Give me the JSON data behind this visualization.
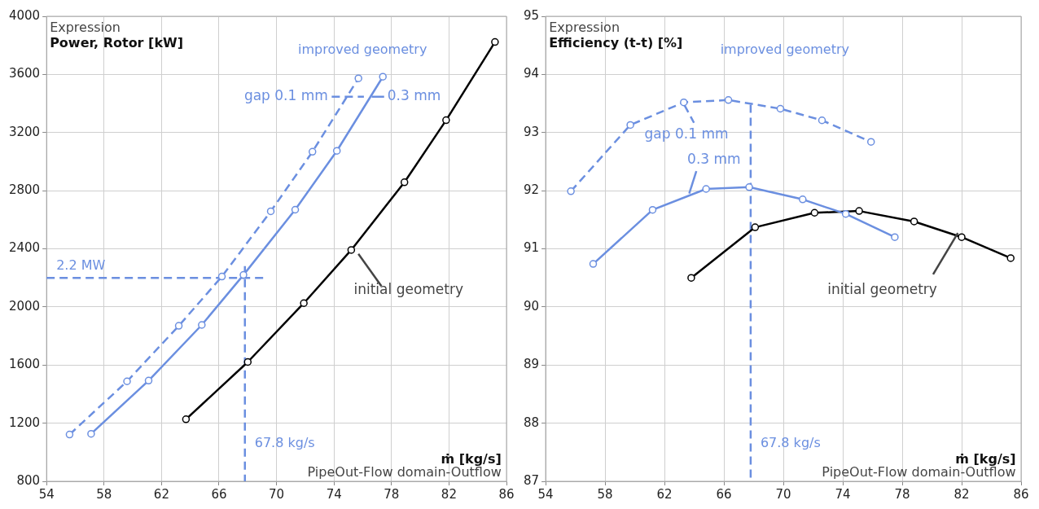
{
  "chart_data": [
    {
      "type": "line",
      "ylabel": "Power, Rotor [kW]",
      "xlabel": "ṁ [kg/s]",
      "annotations": [
        "Expression",
        "improved geometry",
        "PipeOut-Flow domain-Outflow"
      ],
      "xlim": [
        54,
        86
      ],
      "xticks": [
        54,
        58,
        62,
        66,
        70,
        74,
        78,
        82,
        86
      ],
      "ylim": [
        800,
        4000
      ],
      "yticks": [
        800,
        1200,
        1600,
        2000,
        2400,
        2800,
        3200,
        3600,
        4000
      ],
      "grid": true,
      "legend": "top",
      "marker": "circle",
      "ref_lines": [
        {
          "axis": "y",
          "value": 2200,
          "label": "2.2 MW",
          "color": "#6b8fe0",
          "line_style": "dashed"
        },
        {
          "axis": "x",
          "value": 67.8,
          "label": "67.8 kg/s",
          "color": "#6b8fe0",
          "line_style": "dashed"
        }
      ],
      "series": [
        {
          "name": "gap 0.1 mm",
          "color": "#6b8fe0",
          "line_style": "dashed",
          "x": [
            55.6,
            59.6,
            63.2,
            66.2,
            69.6,
            72.5,
            75.7
          ],
          "values": [
            1122,
            1488,
            1870,
            2209,
            2658,
            3068,
            3573
          ]
        },
        {
          "name": "0.3 mm",
          "color": "#6b8fe0",
          "line_style": "solid",
          "x": [
            57.1,
            61.1,
            64.8,
            67.7,
            71.3,
            74.2,
            77.4
          ],
          "values": [
            1127,
            1493,
            1876,
            2220,
            2669,
            3074,
            3584
          ]
        },
        {
          "name": "initial geometry",
          "color": "#000000",
          "line_style": "solid",
          "x": [
            63.7,
            68.0,
            71.9,
            75.2,
            78.9,
            81.8,
            85.2
          ],
          "values": [
            1227,
            1621,
            2026,
            2392,
            2858,
            3285,
            3823
          ]
        }
      ]
    },
    {
      "type": "line",
      "ylabel": "Efficiency (t-t) [%]",
      "xlabel": "ṁ [kg/s]",
      "annotations": [
        "Expression",
        "improved geometry",
        "PipeOut-Flow domain-Outflow"
      ],
      "xlim": [
        54,
        86
      ],
      "xticks": [
        54,
        58,
        62,
        66,
        70,
        74,
        78,
        82,
        86
      ],
      "ylim": [
        87,
        95
      ],
      "yticks": [
        87,
        88,
        89,
        90,
        91,
        92,
        93,
        94,
        95
      ],
      "grid": true,
      "legend": "top",
      "marker": "circle",
      "ref_lines": [
        {
          "axis": "x",
          "value": 67.8,
          "label": "67.8 kg/s",
          "color": "#6b8fe0",
          "line_style": "dashed"
        }
      ],
      "series": [
        {
          "name": "gap 0.1 mm",
          "color": "#6b8fe0",
          "line_style": "dashed",
          "x": [
            55.7,
            59.7,
            63.3,
            66.3,
            69.8,
            72.6,
            75.9
          ],
          "values": [
            91.99,
            93.13,
            93.52,
            93.56,
            93.41,
            93.21,
            92.84
          ]
        },
        {
          "name": "0.3 mm",
          "color": "#6b8fe0",
          "line_style": "solid",
          "x": [
            57.2,
            61.2,
            64.8,
            67.7,
            71.3,
            74.2,
            77.5
          ],
          "values": [
            90.74,
            91.67,
            92.03,
            92.06,
            91.85,
            91.6,
            91.2
          ]
        },
        {
          "name": "initial geometry",
          "color": "#000000",
          "line_style": "solid",
          "x": [
            63.8,
            68.1,
            72.1,
            75.1,
            78.8,
            82.0,
            85.3
          ],
          "values": [
            90.5,
            91.37,
            91.62,
            91.65,
            91.47,
            91.2,
            90.84
          ]
        }
      ]
    }
  ]
}
